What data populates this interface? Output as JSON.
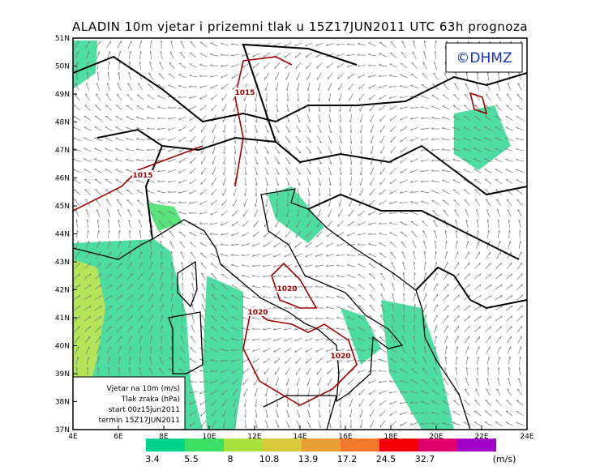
{
  "title": "ALADIN 10m vjetar i prizemni tlak u 15Z17JUN2011 UTC 63h prognoza",
  "logo": "©DHMZ",
  "lat_labels": [
    "51N",
    "50N",
    "49N",
    "48N",
    "47N",
    "46N",
    "45N",
    "44N",
    "43N",
    "42N",
    "41N",
    "40N",
    "39N",
    "38N",
    "37N"
  ],
  "lon_labels": [
    "4E",
    "6E",
    "8E",
    "10E",
    "12E",
    "14E",
    "16E",
    "18E",
    "20E",
    "22E",
    "24E"
  ],
  "isobar_labels": [
    "1015",
    "1015",
    "1020",
    "1020",
    "1020"
  ],
  "info_box": [
    "Vjetar na 10m (m/s)",
    "Tlak zraka (hPa)",
    "start 00z15jun2011",
    "termin 15Z17JUN2011"
  ],
  "colorbar": {
    "labels": [
      "3.4",
      "5.5",
      "8",
      "10.8",
      "13.9",
      "17.2",
      "24.5",
      "32.7"
    ],
    "colors": [
      "#00d48c",
      "#3ce064",
      "#a8e03c",
      "#d8c83c",
      "#e8a034",
      "#f07828",
      "#f00000",
      "#e0006c",
      "#a000c8"
    ],
    "unit": "(m/s)"
  }
}
